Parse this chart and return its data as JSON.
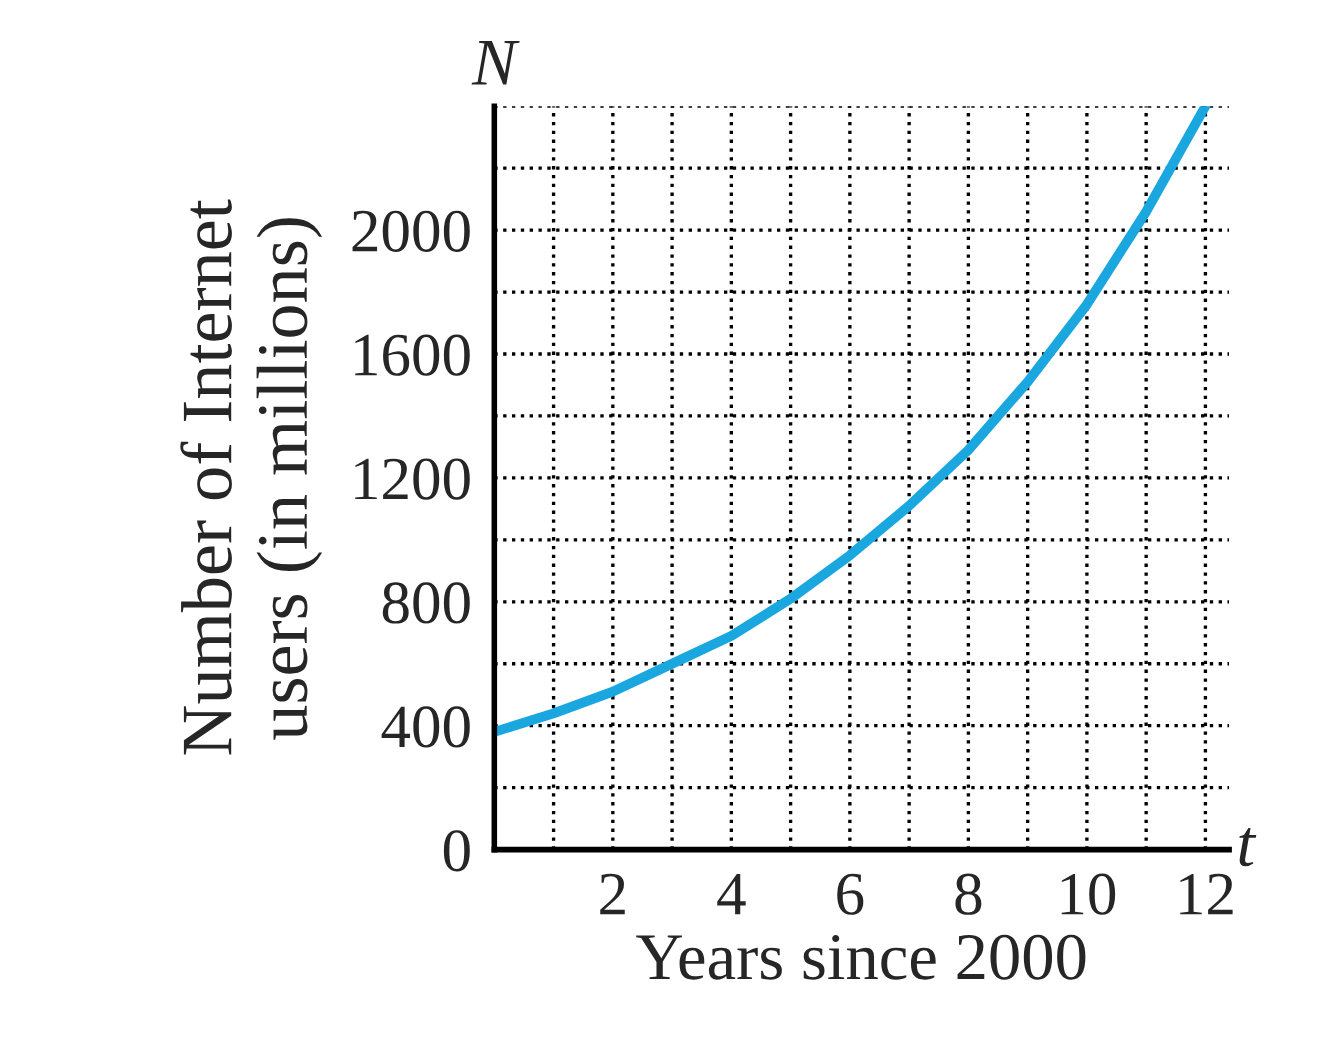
{
  "chart_data": {
    "type": "line",
    "xlabel": "Years since 2000",
    "ylabel": "Number of Internet\nusers (in millions)",
    "annotations": [
      "N",
      "t"
    ],
    "x": [
      0,
      1,
      2,
      3,
      4,
      5,
      6,
      7,
      8,
      9,
      10,
      11,
      12
    ],
    "series": [
      {
        "color": "#1aa7e0",
        "values": [
          380,
          440,
          510,
          600,
          690,
          810,
          950,
          1110,
          1290,
          1510,
          1760,
          2060,
          2400
        ]
      }
    ],
    "xlim": [
      0,
      12.4
    ],
    "ylim": [
      0,
      2400
    ],
    "xticks": [
      {
        "value": 1,
        "label": null
      },
      2,
      {
        "value": 3,
        "label": null
      },
      4,
      {
        "value": 5,
        "label": null
      },
      6,
      {
        "value": 7,
        "label": null
      },
      8,
      {
        "value": 9,
        "label": null
      },
      10,
      {
        "value": 11,
        "label": null
      },
      12
    ],
    "yticks": [
      0,
      {
        "value": 200,
        "label": null
      },
      400,
      {
        "value": 600,
        "label": null
      },
      800,
      {
        "value": 1000,
        "label": null
      },
      1200,
      {
        "value": 1400,
        "label": null
      },
      1600,
      {
        "value": 1800,
        "label": null
      },
      2000,
      {
        "value": 2200,
        "label": null
      },
      {
        "value": 2400,
        "label": null
      }
    ],
    "grid": true,
    "line_style": "solid",
    "marker": "none"
  }
}
